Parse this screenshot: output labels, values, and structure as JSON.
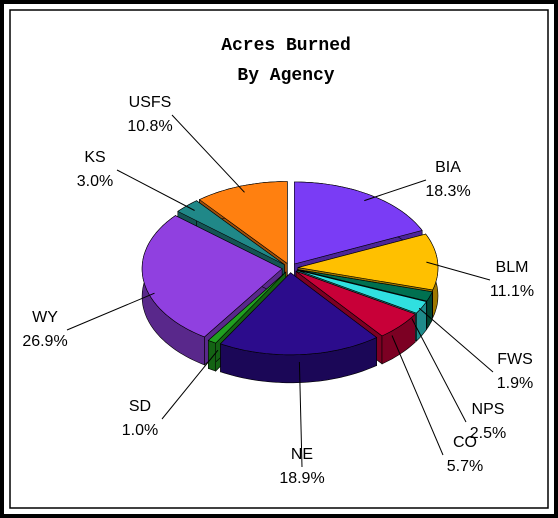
{
  "chart_data": {
    "type": "pie",
    "title": "Acres Burned",
    "subtitle": "By Agency",
    "categories": [
      "BIA",
      "BLM",
      "FWS",
      "NPS",
      "CO",
      "NE",
      "SD",
      "WY",
      "KS",
      "USFS"
    ],
    "values": [
      18.3,
      11.1,
      1.9,
      2.5,
      5.7,
      18.9,
      1.0,
      26.9,
      3.0,
      10.8
    ],
    "value_labels": [
      "18.3%",
      "11.1%",
      "1.9%",
      "2.5%",
      "5.7%",
      "18.9%",
      "1.0%",
      "26.9%",
      "3.0%",
      "10.8%"
    ],
    "colors": [
      "#7a3cf5",
      "#ffc000",
      "#007050",
      "#30e0e0",
      "#c80038",
      "#2c0c8c",
      "#20a020",
      "#9040e0",
      "#208888",
      "#ff8010"
    ]
  }
}
